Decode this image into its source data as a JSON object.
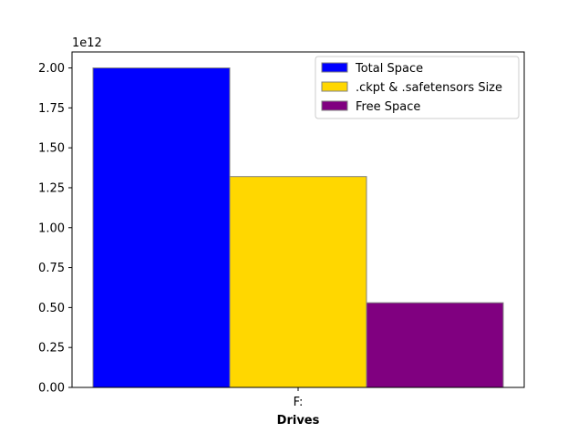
{
  "chart_data": {
    "type": "bar",
    "categories": [
      "F:"
    ],
    "series": [
      {
        "name": "Total Space",
        "values": [
          2000000000000
        ],
        "color": "#0000ff"
      },
      {
        "name": ".ckpt & .safetensors Size",
        "values": [
          1320000000000
        ],
        "color": "#ffd700"
      },
      {
        "name": "Free Space",
        "values": [
          530000000000
        ],
        "color": "#800080"
      }
    ],
    "xlabel": "Drives",
    "ylabel": "",
    "ylim": [
      0,
      2100000000000
    ],
    "yticks": [
      0,
      250000000000,
      500000000000,
      750000000000,
      1000000000000,
      1250000000000,
      1500000000000,
      1750000000000,
      2000000000000
    ],
    "ytick_labels": [
      "0.00",
      "0.25",
      "0.50",
      "0.75",
      "1.00",
      "1.25",
      "1.50",
      "1.75",
      "2.00"
    ],
    "y_offset_label": "1e12",
    "bar_edge_color": "#808080",
    "grid": false,
    "legend_position": "top-right"
  }
}
